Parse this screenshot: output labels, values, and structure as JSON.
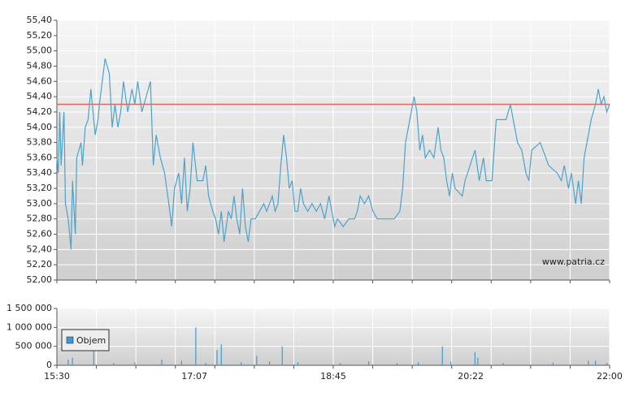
{
  "chart_data": [
    {
      "type": "line",
      "annotation": "www.patria.cz",
      "xlim": [
        "15:30",
        "22:00"
      ],
      "ylim": [
        52.0,
        55.4
      ],
      "yticks": [
        {
          "value": 52.0,
          "label": "52,00"
        },
        {
          "value": 52.2,
          "label": "52,20"
        },
        {
          "value": 52.4,
          "label": "52,40"
        },
        {
          "value": 52.6,
          "label": "52,60"
        },
        {
          "value": 52.8,
          "label": "52,80"
        },
        {
          "value": 53.0,
          "label": "53,00"
        },
        {
          "value": 53.2,
          "label": "53,20"
        },
        {
          "value": 53.4,
          "label": "53,40"
        },
        {
          "value": 53.6,
          "label": "53,60"
        },
        {
          "value": 53.8,
          "label": "53,80"
        },
        {
          "value": 54.0,
          "label": "54,00"
        },
        {
          "value": 54.2,
          "label": "54,20"
        },
        {
          "value": 54.4,
          "label": "54,40"
        },
        {
          "value": 54.6,
          "label": "54,60"
        },
        {
          "value": 54.8,
          "label": "54,80"
        },
        {
          "value": 55.0,
          "label": "55,00"
        },
        {
          "value": 55.2,
          "label": "55,20"
        },
        {
          "value": 55.4,
          "label": "55,40"
        }
      ],
      "grid": true,
      "reference_line": {
        "value": 54.3,
        "color": "#e8655c"
      },
      "series": [
        {
          "color": "#4aa3cc",
          "x": [
            "15:30",
            "15:31",
            "15:32",
            "15:33",
            "15:35",
            "15:36",
            "15:38",
            "15:40",
            "15:41",
            "15:43",
            "15:44",
            "15:47",
            "15:48",
            "15:50",
            "15:52",
            "15:54",
            "15:57",
            "15:59",
            "16:00",
            "16:02",
            "16:04",
            "16:07",
            "16:09",
            "16:11",
            "16:13",
            "16:15",
            "16:17",
            "16:20",
            "16:23",
            "16:25",
            "16:27",
            "16:30",
            "16:33",
            "16:36",
            "16:38",
            "16:40",
            "16:43",
            "16:46",
            "16:49",
            "16:51",
            "16:53",
            "16:56",
            "16:58",
            "17:00",
            "17:02",
            "17:04",
            "17:06",
            "17:09",
            "17:13",
            "17:15",
            "17:17",
            "17:20",
            "17:22",
            "17:24",
            "17:26",
            "17:28",
            "17:31",
            "17:33",
            "17:35",
            "17:37",
            "17:39",
            "17:41",
            "17:43",
            "17:45",
            "17:47",
            "17:50",
            "17:53",
            "17:56",
            "17:58",
            "18:02",
            "18:04",
            "18:06",
            "18:08",
            "18:10",
            "18:12",
            "18:14",
            "18:16",
            "18:18",
            "18:20",
            "18:22",
            "18:24",
            "18:27",
            "18:30",
            "18:33",
            "18:36",
            "18:39",
            "18:42",
            "18:44",
            "18:46",
            "18:48",
            "18:52",
            "18:56",
            "19:00",
            "19:02",
            "19:04",
            "19:07",
            "19:10",
            "19:13",
            "19:16",
            "19:22",
            "19:28",
            "19:32",
            "19:34",
            "19:36",
            "19:39",
            "19:42",
            "19:44",
            "19:46",
            "19:48",
            "19:50",
            "19:53",
            "19:56",
            "19:59",
            "20:01",
            "20:03",
            "20:05",
            "20:07",
            "20:09",
            "20:11",
            "20:16",
            "20:18",
            "20:25",
            "20:28",
            "20:31",
            "20:33",
            "20:37",
            "20:40",
            "20:47",
            "20:50",
            "20:52",
            "20:55",
            "20:58",
            "21:01",
            "21:03",
            "21:05",
            "21:11",
            "21:17",
            "21:23",
            "21:26",
            "21:28",
            "21:31",
            "21:33",
            "21:36",
            "21:38",
            "21:40",
            "21:42",
            "21:44",
            "21:47",
            "21:50",
            "21:52",
            "21:54",
            "21:56",
            "21:58",
            "22:00"
          ],
          "values": [
            53.6,
            53.4,
            54.2,
            53.5,
            54.2,
            53.0,
            52.8,
            52.4,
            53.3,
            52.6,
            53.6,
            53.8,
            53.5,
            54.0,
            54.1,
            54.5,
            53.9,
            54.1,
            54.3,
            54.6,
            54.9,
            54.7,
            54.0,
            54.3,
            54.0,
            54.2,
            54.6,
            54.2,
            54.5,
            54.3,
            54.6,
            54.2,
            54.4,
            54.6,
            53.5,
            53.9,
            53.6,
            53.4,
            53.0,
            52.7,
            53.2,
            53.4,
            53.0,
            53.6,
            52.9,
            53.2,
            53.8,
            53.3,
            53.3,
            53.5,
            53.1,
            52.9,
            52.8,
            52.6,
            52.9,
            52.5,
            52.9,
            52.8,
            53.1,
            52.8,
            52.6,
            53.2,
            52.7,
            52.5,
            52.8,
            52.8,
            52.9,
            53.0,
            52.9,
            53.1,
            52.9,
            53.0,
            53.5,
            53.9,
            53.6,
            53.2,
            53.3,
            52.9,
            52.9,
            53.2,
            53.0,
            52.9,
            53.0,
            52.9,
            53.0,
            52.8,
            53.1,
            52.9,
            52.7,
            52.8,
            52.7,
            52.8,
            52.8,
            52.9,
            53.1,
            53.0,
            53.1,
            52.9,
            52.8,
            52.8,
            52.8,
            52.9,
            53.2,
            53.8,
            54.1,
            54.4,
            54.2,
            53.7,
            53.9,
            53.6,
            53.7,
            53.6,
            54.0,
            53.7,
            53.6,
            53.3,
            53.1,
            53.4,
            53.2,
            53.1,
            53.3,
            53.7,
            53.3,
            53.6,
            53.3,
            53.3,
            54.1,
            54.1,
            54.3,
            54.1,
            53.8,
            53.7,
            53.4,
            53.3,
            53.7,
            53.8,
            53.5,
            53.4,
            53.3,
            53.5,
            53.2,
            53.4,
            53.0,
            53.3,
            53.0,
            53.6,
            53.8,
            54.1,
            54.3,
            54.5,
            54.3,
            54.4,
            54.2,
            54.3
          ]
        }
      ]
    },
    {
      "type": "bar",
      "xlim": [
        "15:30",
        "22:00"
      ],
      "xticks": [
        "15:30",
        "17:07",
        "18:45",
        "20:22",
        "22:00"
      ],
      "ylim": [
        0,
        1500000
      ],
      "yticks": [
        0,
        {
          "value": 500000,
          "label": "500 000"
        },
        {
          "value": 1000000,
          "label": "1 000 000"
        },
        {
          "value": 1500000,
          "label": "1 500 000"
        }
      ],
      "grid": true,
      "legend": "top-left",
      "series": [
        {
          "name": "Objem",
          "color": "#3b9bd6",
          "x": [
            "15:38",
            "15:41",
            "15:56",
            "16:10",
            "16:25",
            "16:44",
            "16:58",
            "17:08",
            "17:15",
            "17:23",
            "17:26",
            "17:40",
            "17:51",
            "18:00",
            "18:09",
            "18:20",
            "18:50",
            "19:10",
            "19:30",
            "19:45",
            "20:02",
            "20:08",
            "20:25",
            "20:27",
            "20:45",
            "21:20",
            "21:45",
            "21:50",
            "21:58"
          ],
          "values": [
            150000,
            200000,
            900000,
            60000,
            80000,
            150000,
            120000,
            1000000,
            60000,
            400000,
            550000,
            80000,
            250000,
            100000,
            500000,
            80000,
            60000,
            100000,
            60000,
            80000,
            500000,
            100000,
            350000,
            200000,
            60000,
            70000,
            120000,
            120000,
            60000
          ]
        }
      ]
    }
  ]
}
